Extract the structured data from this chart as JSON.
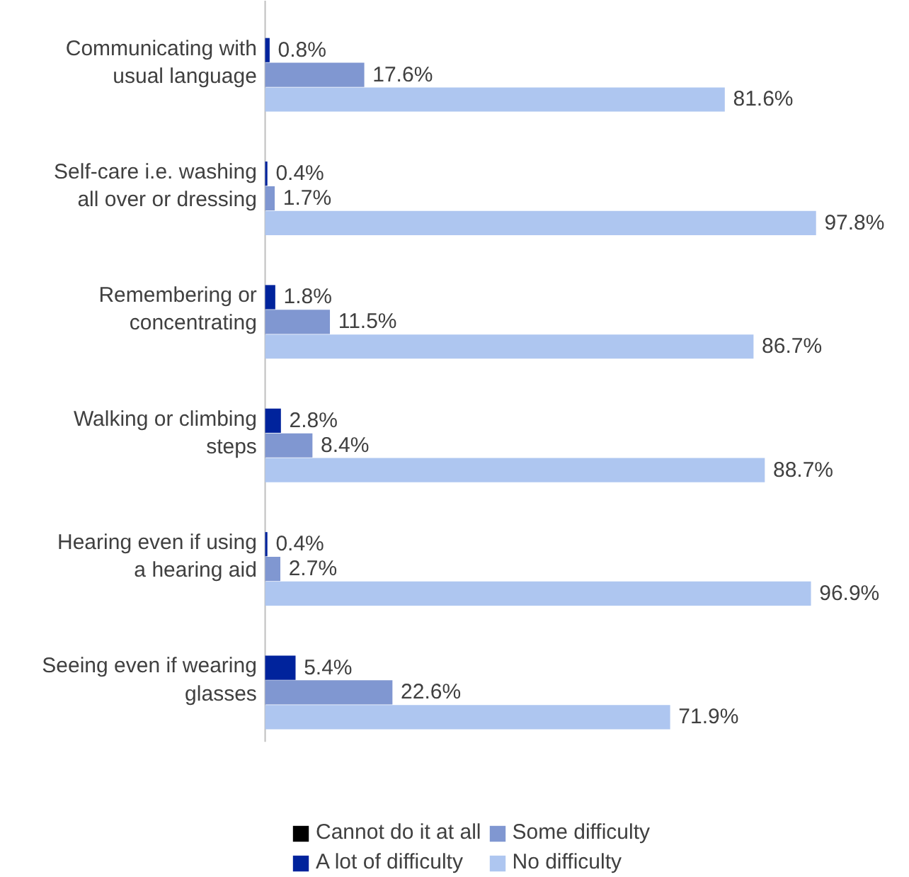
{
  "chart_data": {
    "type": "bar",
    "orientation": "horizontal",
    "legend": "bottom",
    "categories": [
      "Communicating with usual language",
      "Self-care i.e. washing all over or dressing",
      "Remembering or concentrating",
      "Walking or climbing steps",
      "Hearing even if using a hearing aid",
      "Seeing even if wearing glasses"
    ],
    "series": [
      {
        "name": "Cannot do it at all",
        "color": "#000000",
        "values": [
          0,
          0,
          0,
          0,
          0,
          0
        ],
        "value_labels": [
          null,
          null,
          null,
          null,
          null,
          null
        ]
      },
      {
        "name": "A lot of difficulty",
        "color": "#00239c",
        "values": [
          0.8,
          0.4,
          1.8,
          2.8,
          0.4,
          5.4
        ],
        "value_labels": [
          "0.8%",
          "0.4%",
          "1.8%",
          "2.8%",
          "0.4%",
          "5.4%"
        ]
      },
      {
        "name": "Some difficulty",
        "color": "#8097d1",
        "values": [
          17.6,
          1.7,
          11.5,
          8.4,
          2.7,
          22.6
        ],
        "value_labels": [
          "17.6%",
          "1.7%",
          "11.5%",
          "8.4%",
          "2.7%",
          "22.6%"
        ]
      },
      {
        "name": "No difficulty",
        "color": "#aec6f0",
        "values": [
          81.6,
          97.8,
          86.7,
          88.7,
          96.9,
          71.9
        ],
        "value_labels": [
          "81.6%",
          "97.8%",
          "86.7%",
          "88.7%",
          "96.9%",
          "71.9%"
        ]
      }
    ]
  }
}
